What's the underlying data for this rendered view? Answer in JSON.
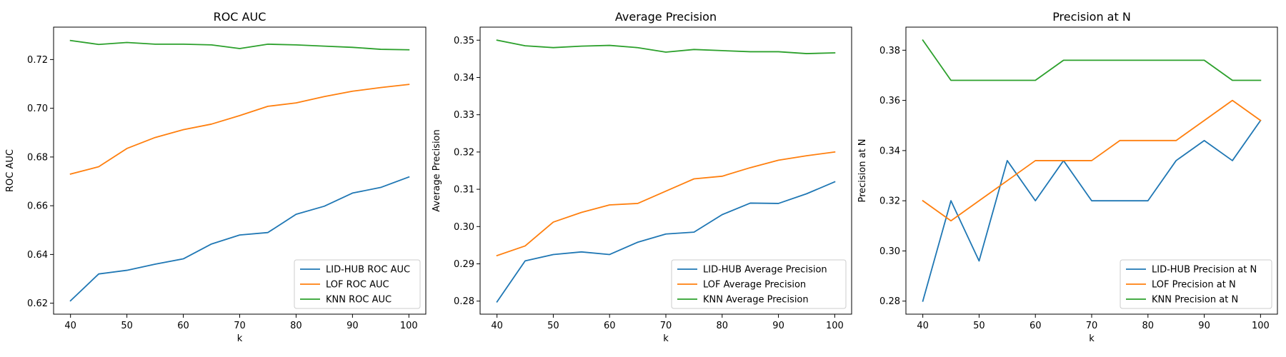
{
  "chart_data": [
    {
      "type": "line",
      "title": "ROC AUC",
      "xlabel": "k",
      "ylabel": "ROC AUC",
      "x": [
        40,
        45,
        50,
        55,
        60,
        65,
        70,
        75,
        80,
        85,
        90,
        95,
        100
      ],
      "xticks": [
        40,
        50,
        60,
        70,
        80,
        90,
        100
      ],
      "yticks": [
        0.62,
        0.64,
        0.66,
        0.68,
        0.7,
        0.72
      ],
      "ytick_labels": [
        "0.62",
        "0.64",
        "0.66",
        "0.68",
        "0.70",
        "0.72"
      ],
      "xlim": [
        37,
        103
      ],
      "ylim": [
        0.6155,
        0.7333
      ],
      "grid": false,
      "legend_position": "lower-right",
      "series": [
        {
          "name": "LID-HUB ROC AUC",
          "color": "#1f77b4",
          "values": [
            0.621,
            0.632,
            0.6335,
            0.636,
            0.6382,
            0.6443,
            0.648,
            0.649,
            0.6565,
            0.6598,
            0.6652,
            0.6675,
            0.6718
          ]
        },
        {
          "name": "LOF ROC AUC",
          "color": "#ff7f0e",
          "values": [
            0.673,
            0.676,
            0.6835,
            0.688,
            0.6912,
            0.6935,
            0.697,
            0.7008,
            0.7022,
            0.7048,
            0.707,
            0.7085,
            0.7098
          ]
        },
        {
          "name": "KNN ROC AUC",
          "color": "#2ca02c",
          "values": [
            0.7278,
            0.7262,
            0.727,
            0.7263,
            0.7263,
            0.726,
            0.7245,
            0.7263,
            0.726,
            0.7255,
            0.725,
            0.7242,
            0.724
          ]
        }
      ]
    },
    {
      "type": "line",
      "title": "Average Precision",
      "xlabel": "k",
      "ylabel": "Average Precision",
      "x": [
        40,
        45,
        50,
        55,
        60,
        65,
        70,
        75,
        80,
        85,
        90,
        95,
        100
      ],
      "xticks": [
        40,
        50,
        60,
        70,
        80,
        90,
        100
      ],
      "yticks": [
        0.28,
        0.29,
        0.3,
        0.31,
        0.32,
        0.33,
        0.34,
        0.35
      ],
      "ytick_labels": [
        "0.28",
        "0.29",
        "0.30",
        "0.31",
        "0.32",
        "0.33",
        "0.34",
        "0.35"
      ],
      "xlim": [
        37,
        103
      ],
      "ylim": [
        0.2765,
        0.3535
      ],
      "grid": false,
      "legend_position": "lower-right",
      "series": [
        {
          "name": "LID-HUB Average Precision",
          "color": "#1f77b4",
          "values": [
            0.2798,
            0.2908,
            0.2925,
            0.2932,
            0.2925,
            0.2958,
            0.298,
            0.2985,
            0.3032,
            0.3063,
            0.3062,
            0.3088,
            0.312
          ]
        },
        {
          "name": "LOF Average Precision",
          "color": "#ff7f0e",
          "values": [
            0.2922,
            0.2948,
            0.3012,
            0.3038,
            0.3058,
            0.3062,
            0.3095,
            0.3128,
            0.3135,
            0.3158,
            0.3178,
            0.319,
            0.32
          ]
        },
        {
          "name": "KNN Average Precision",
          "color": "#2ca02c",
          "values": [
            0.35,
            0.3485,
            0.348,
            0.3484,
            0.3486,
            0.348,
            0.3468,
            0.3475,
            0.3472,
            0.3469,
            0.3469,
            0.3464,
            0.3466
          ]
        }
      ]
    },
    {
      "type": "line",
      "title": "Precision at N",
      "xlabel": "k",
      "ylabel": "Precision at N",
      "x": [
        40,
        45,
        50,
        55,
        60,
        65,
        70,
        75,
        80,
        85,
        90,
        95,
        100
      ],
      "xticks": [
        40,
        50,
        60,
        70,
        80,
        90,
        100
      ],
      "yticks": [
        0.28,
        0.3,
        0.32,
        0.34,
        0.36,
        0.38
      ],
      "ytick_labels": [
        "0.28",
        "0.30",
        "0.32",
        "0.34",
        "0.36",
        "0.38"
      ],
      "xlim": [
        37,
        103
      ],
      "ylim": [
        0.2748,
        0.3892
      ],
      "grid": false,
      "legend_position": "lower-right",
      "series": [
        {
          "name": "LID-HUB Precision at N",
          "color": "#1f77b4",
          "values": [
            0.28,
            0.32,
            0.296,
            0.336,
            0.32,
            0.336,
            0.32,
            0.32,
            0.32,
            0.336,
            0.344,
            0.336,
            0.352
          ]
        },
        {
          "name": "LOF Precision at N",
          "color": "#ff7f0e",
          "values": [
            0.32,
            0.312,
            0.32,
            0.328,
            0.336,
            0.336,
            0.336,
            0.344,
            0.344,
            0.344,
            0.352,
            0.36,
            0.352
          ]
        },
        {
          "name": "KNN Precision at N",
          "color": "#2ca02c",
          "values": [
            0.384,
            0.368,
            0.368,
            0.368,
            0.368,
            0.376,
            0.376,
            0.376,
            0.376,
            0.376,
            0.376,
            0.368,
            0.368
          ]
        }
      ]
    }
  ]
}
